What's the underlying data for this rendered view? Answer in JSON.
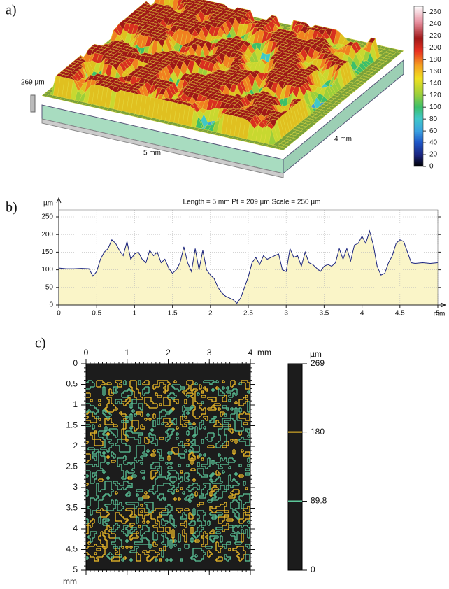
{
  "chart_data": [
    {
      "type": "surface",
      "label": "a)",
      "z_label": "269 µm",
      "x_label": "5 mm",
      "y_label": "4 mm",
      "colorbar": {
        "lim": [
          0,
          270
        ],
        "ticks": [
          0,
          20,
          40,
          60,
          80,
          100,
          120,
          140,
          160,
          180,
          200,
          220,
          240,
          260
        ]
      }
    },
    {
      "type": "line",
      "label": "b)",
      "title": "Length = 5 mm  Pt = 209 µm  Scale = 250 µm",
      "y_unit": "µm",
      "x_unit": "mm",
      "color": "#1a237e",
      "fill_color": "#faf5c8",
      "grid": true,
      "xlim": [
        0,
        5
      ],
      "xticks": [
        0,
        0.5,
        1,
        1.5,
        2,
        2.5,
        3,
        3.5,
        4,
        4.5,
        5
      ],
      "ylim": [
        0,
        250
      ],
      "yticks": [
        0,
        50,
        100,
        150,
        200,
        250
      ],
      "x": [
        0,
        0.1,
        0.2,
        0.3,
        0.4,
        0.45,
        0.5,
        0.55,
        0.6,
        0.65,
        0.7,
        0.75,
        0.8,
        0.85,
        0.9,
        0.95,
        1.0,
        1.05,
        1.1,
        1.15,
        1.2,
        1.25,
        1.3,
        1.35,
        1.4,
        1.45,
        1.5,
        1.55,
        1.6,
        1.65,
        1.7,
        1.75,
        1.8,
        1.85,
        1.9,
        1.95,
        2.0,
        2.05,
        2.1,
        2.15,
        2.2,
        2.25,
        2.3,
        2.35,
        2.4,
        2.45,
        2.5,
        2.55,
        2.6,
        2.65,
        2.7,
        2.75,
        2.8,
        2.85,
        2.9,
        2.95,
        3.0,
        3.05,
        3.1,
        3.15,
        3.2,
        3.25,
        3.3,
        3.35,
        3.4,
        3.45,
        3.5,
        3.55,
        3.6,
        3.65,
        3.7,
        3.75,
        3.8,
        3.85,
        3.9,
        3.95,
        4.0,
        4.05,
        4.1,
        4.15,
        4.2,
        4.25,
        4.3,
        4.35,
        4.4,
        4.45,
        4.5,
        4.55,
        4.6,
        4.65,
        4.7,
        4.8,
        4.9,
        5.0
      ],
      "values": [
        105,
        103,
        103,
        104,
        103,
        82,
        95,
        130,
        150,
        160,
        185,
        175,
        155,
        140,
        180,
        130,
        145,
        150,
        130,
        120,
        155,
        140,
        150,
        120,
        130,
        105,
        90,
        100,
        120,
        165,
        120,
        95,
        160,
        100,
        155,
        100,
        85,
        75,
        50,
        35,
        25,
        20,
        15,
        5,
        20,
        50,
        80,
        120,
        135,
        115,
        140,
        130,
        135,
        140,
        145,
        100,
        95,
        160,
        135,
        140,
        110,
        150,
        120,
        115,
        105,
        95,
        110,
        115,
        110,
        120,
        160,
        130,
        160,
        125,
        170,
        175,
        195,
        175,
        210,
        170,
        110,
        85,
        90,
        120,
        140,
        175,
        185,
        180,
        150,
        120,
        118,
        120,
        118,
        120
      ]
    },
    {
      "type": "contour",
      "label": "c)",
      "x_unit": "mm",
      "y_unit": "mm",
      "xlim": [
        0,
        4
      ],
      "xticks": [
        0,
        1,
        2,
        3,
        4
      ],
      "ylim": [
        0,
        5
      ],
      "yticks": [
        0,
        0.5,
        1,
        1.5,
        2,
        2.5,
        3,
        3.5,
        4,
        4.5,
        5
      ],
      "colorbar": {
        "unit": "µm",
        "lim": [
          0,
          269
        ],
        "ticks": [
          0,
          269
        ]
      },
      "contours": [
        {
          "value": 180,
          "color": "#f5c12a"
        },
        {
          "value": 89.8,
          "color": "#5cc79a"
        }
      ]
    }
  ]
}
